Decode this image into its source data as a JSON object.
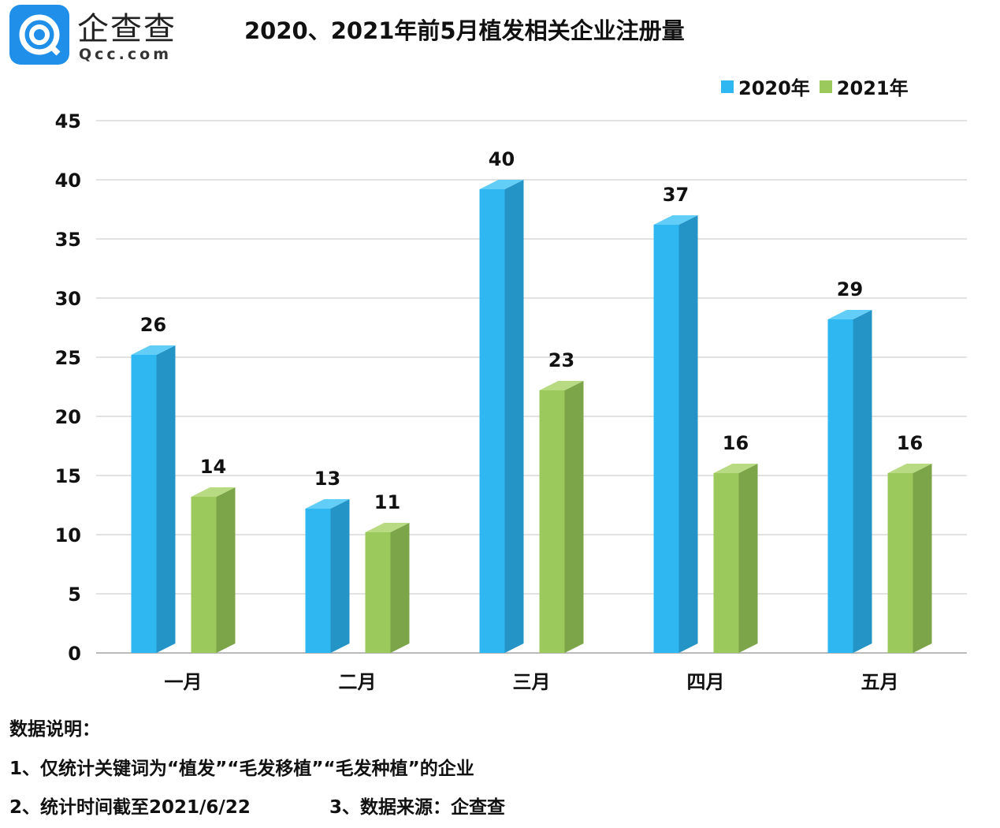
{
  "logo": {
    "name": "企查查",
    "sub": "Qcc.com"
  },
  "notes": {
    "heading": "数据说明：",
    "line1": "1、仅统计关键词为“植发”“毛发移植”“毛发种植”的企业",
    "line2a": "2、统计时间截至2021/6/22",
    "line2b": "3、数据来源：企查查"
  },
  "colors": {
    "s2020": "#2EB7F0",
    "s2021": "#9BC95C"
  },
  "chart_data": {
    "type": "bar",
    "title": "2020、2021年前5月植发相关企业注册量",
    "categories": [
      "一月",
      "二月",
      "三月",
      "四月",
      "五月"
    ],
    "series": [
      {
        "name": "2020年",
        "values": [
          26,
          13,
          40,
          37,
          29
        ]
      },
      {
        "name": "2021年",
        "values": [
          14,
          11,
          23,
          16,
          16
        ]
      }
    ],
    "ylim": [
      0,
      45
    ],
    "yticks": [
      0,
      5,
      10,
      15,
      20,
      25,
      30,
      35,
      40,
      45
    ],
    "legend": "top-right",
    "grid": true,
    "xlabel": "",
    "ylabel": ""
  }
}
